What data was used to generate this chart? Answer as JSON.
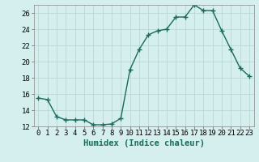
{
  "x": [
    0,
    1,
    2,
    3,
    4,
    5,
    6,
    7,
    8,
    9,
    10,
    11,
    12,
    13,
    14,
    15,
    16,
    17,
    18,
    19,
    20,
    21,
    22,
    23
  ],
  "y": [
    15.5,
    15.3,
    13.2,
    12.8,
    12.8,
    12.8,
    12.2,
    12.2,
    12.3,
    13.0,
    19.0,
    21.5,
    23.3,
    23.8,
    24.0,
    25.5,
    25.5,
    27.0,
    26.3,
    26.3,
    23.8,
    21.5,
    19.2,
    18.2
  ],
  "line_color": "#1a6b5a",
  "marker": "+",
  "marker_size": 4,
  "marker_edge_width": 1.0,
  "bg_color": "#d4efee",
  "grid_color": "#b8d8d5",
  "xlabel": "Humidex (Indice chaleur)",
  "ylim": [
    12,
    27
  ],
  "xlim_left": -0.5,
  "xlim_right": 23.5,
  "yticks": [
    12,
    14,
    16,
    18,
    20,
    22,
    24,
    26
  ],
  "xticks": [
    0,
    1,
    2,
    3,
    4,
    5,
    6,
    7,
    8,
    9,
    10,
    11,
    12,
    13,
    14,
    15,
    16,
    17,
    18,
    19,
    20,
    21,
    22,
    23
  ],
  "xtick_labels": [
    "0",
    "1",
    "2",
    "3",
    "4",
    "5",
    "6",
    "7",
    "8",
    "9",
    "10",
    "11",
    "12",
    "13",
    "14",
    "15",
    "16",
    "17",
    "18",
    "19",
    "20",
    "21",
    "22",
    "23"
  ],
  "xlabel_fontsize": 7.5,
  "tick_fontsize": 6.5,
  "line_width": 1.0
}
